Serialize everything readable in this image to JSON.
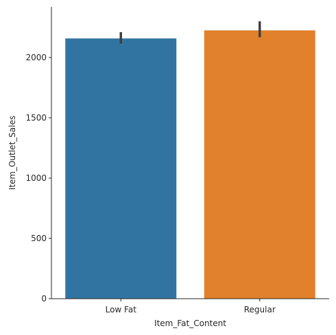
{
  "chart_data": {
    "type": "bar",
    "title": "",
    "xlabel": "Item_Fat_Content",
    "ylabel": "Item_Outlet_Sales",
    "categories": [
      "Low Fat",
      "Regular"
    ],
    "values": [
      2158,
      2225
    ],
    "error_bars": [
      {
        "low": 2115,
        "high": 2210
      },
      {
        "low": 2168,
        "high": 2300
      }
    ],
    "colors": [
      "#3274a1",
      "#e1812c"
    ],
    "error_bar_color": "#3f3f3f",
    "ylim": [
      0,
      2420
    ],
    "yticks": [
      0,
      500,
      1000,
      1500,
      2000
    ],
    "grid": false,
    "legend": "none"
  }
}
